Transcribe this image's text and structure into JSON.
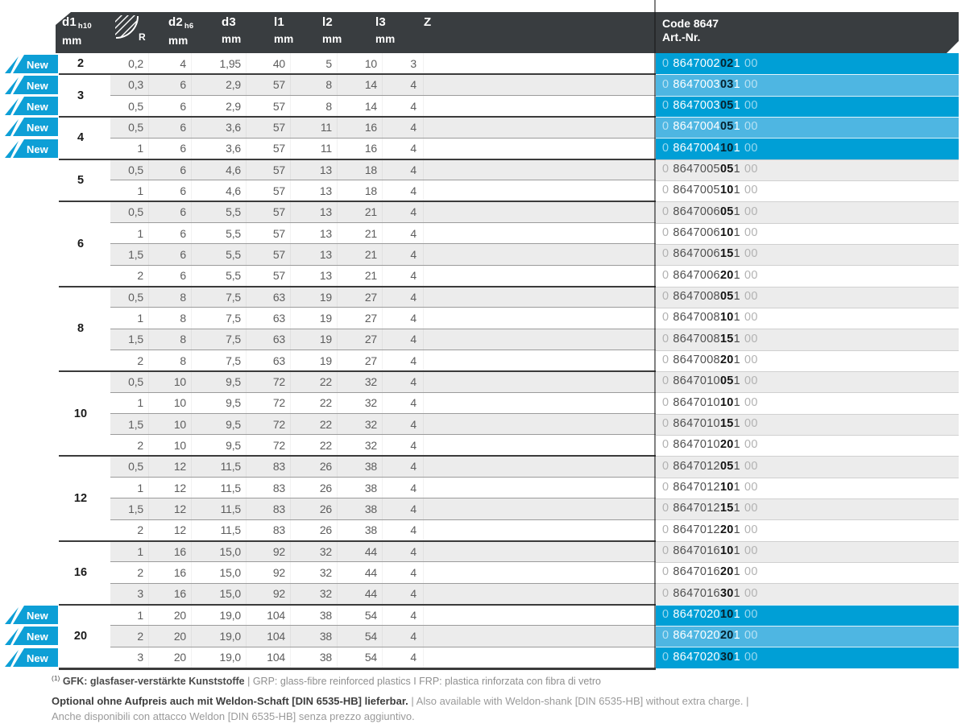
{
  "colors": {
    "accent_blue_dark": "#009fd6",
    "accent_blue_light": "#4eb6e2",
    "badge_blue": "#0d9fd6",
    "header_bg": "#393d40",
    "row_gray": "#ececec"
  },
  "badge_label": "New",
  "header": {
    "columns": [
      {
        "label": "d1",
        "sub": "h10",
        "unit": "mm"
      },
      {
        "label": "R",
        "icon": "radius-icon"
      },
      {
        "label": "d2",
        "sub": "h6",
        "unit": "mm"
      },
      {
        "label": "d3",
        "unit": "mm"
      },
      {
        "label": "l1",
        "unit": "mm"
      },
      {
        "label": "l2",
        "unit": "mm"
      },
      {
        "label": "l3",
        "unit": "mm"
      },
      {
        "label": "Z"
      }
    ],
    "code_title": "Code 8647",
    "code_subtitle": "Art.-Nr."
  },
  "groups": [
    {
      "d1": "2",
      "rows": [
        {
          "cells": [
            "0,2",
            "4",
            "1,95",
            "40",
            "5",
            "10",
            "3"
          ],
          "art": [
            "0",
            "8647002",
            "02",
            "1",
            "00"
          ],
          "new": true,
          "highlight": true
        }
      ]
    },
    {
      "d1": "3",
      "rows": [
        {
          "cells": [
            "0,3",
            "6",
            "2,9",
            "57",
            "8",
            "14",
            "4"
          ],
          "art": [
            "0",
            "8647003",
            "03",
            "1",
            "00"
          ],
          "new": true,
          "highlight": true
        },
        {
          "cells": [
            "0,5",
            "6",
            "2,9",
            "57",
            "8",
            "14",
            "4"
          ],
          "art": [
            "0",
            "8647003",
            "05",
            "1",
            "00"
          ],
          "new": true,
          "highlight": true
        }
      ]
    },
    {
      "d1": "4",
      "rows": [
        {
          "cells": [
            "0,5",
            "6",
            "3,6",
            "57",
            "11",
            "16",
            "4"
          ],
          "art": [
            "0",
            "8647004",
            "05",
            "1",
            "00"
          ],
          "new": true,
          "highlight": true
        },
        {
          "cells": [
            "1",
            "6",
            "3,6",
            "57",
            "11",
            "16",
            "4"
          ],
          "art": [
            "0",
            "8647004",
            "10",
            "1",
            "00"
          ],
          "new": true,
          "highlight": true
        }
      ]
    },
    {
      "d1": "5",
      "rows": [
        {
          "cells": [
            "0,5",
            "6",
            "4,6",
            "57",
            "13",
            "18",
            "4"
          ],
          "art": [
            "0",
            "8647005",
            "05",
            "1",
            "00"
          ]
        },
        {
          "cells": [
            "1",
            "6",
            "4,6",
            "57",
            "13",
            "18",
            "4"
          ],
          "art": [
            "0",
            "8647005",
            "10",
            "1",
            "00"
          ]
        }
      ]
    },
    {
      "d1": "6",
      "rows": [
        {
          "cells": [
            "0,5",
            "6",
            "5,5",
            "57",
            "13",
            "21",
            "4"
          ],
          "art": [
            "0",
            "8647006",
            "05",
            "1",
            "00"
          ]
        },
        {
          "cells": [
            "1",
            "6",
            "5,5",
            "57",
            "13",
            "21",
            "4"
          ],
          "art": [
            "0",
            "8647006",
            "10",
            "1",
            "00"
          ]
        },
        {
          "cells": [
            "1,5",
            "6",
            "5,5",
            "57",
            "13",
            "21",
            "4"
          ],
          "art": [
            "0",
            "8647006",
            "15",
            "1",
            "00"
          ]
        },
        {
          "cells": [
            "2",
            "6",
            "5,5",
            "57",
            "13",
            "21",
            "4"
          ],
          "art": [
            "0",
            "8647006",
            "20",
            "1",
            "00"
          ]
        }
      ]
    },
    {
      "d1": "8",
      "rows": [
        {
          "cells": [
            "0,5",
            "8",
            "7,5",
            "63",
            "19",
            "27",
            "4"
          ],
          "art": [
            "0",
            "8647008",
            "05",
            "1",
            "00"
          ]
        },
        {
          "cells": [
            "1",
            "8",
            "7,5",
            "63",
            "19",
            "27",
            "4"
          ],
          "art": [
            "0",
            "8647008",
            "10",
            "1",
            "00"
          ]
        },
        {
          "cells": [
            "1,5",
            "8",
            "7,5",
            "63",
            "19",
            "27",
            "4"
          ],
          "art": [
            "0",
            "8647008",
            "15",
            "1",
            "00"
          ]
        },
        {
          "cells": [
            "2",
            "8",
            "7,5",
            "63",
            "19",
            "27",
            "4"
          ],
          "art": [
            "0",
            "8647008",
            "20",
            "1",
            "00"
          ]
        }
      ]
    },
    {
      "d1": "10",
      "rows": [
        {
          "cells": [
            "0,5",
            "10",
            "9,5",
            "72",
            "22",
            "32",
            "4"
          ],
          "art": [
            "0",
            "8647010",
            "05",
            "1",
            "00"
          ]
        },
        {
          "cells": [
            "1",
            "10",
            "9,5",
            "72",
            "22",
            "32",
            "4"
          ],
          "art": [
            "0",
            "8647010",
            "10",
            "1",
            "00"
          ]
        },
        {
          "cells": [
            "1,5",
            "10",
            "9,5",
            "72",
            "22",
            "32",
            "4"
          ],
          "art": [
            "0",
            "8647010",
            "15",
            "1",
            "00"
          ]
        },
        {
          "cells": [
            "2",
            "10",
            "9,5",
            "72",
            "22",
            "32",
            "4"
          ],
          "art": [
            "0",
            "8647010",
            "20",
            "1",
            "00"
          ]
        }
      ]
    },
    {
      "d1": "12",
      "rows": [
        {
          "cells": [
            "0,5",
            "12",
            "11,5",
            "83",
            "26",
            "38",
            "4"
          ],
          "art": [
            "0",
            "8647012",
            "05",
            "1",
            "00"
          ]
        },
        {
          "cells": [
            "1",
            "12",
            "11,5",
            "83",
            "26",
            "38",
            "4"
          ],
          "art": [
            "0",
            "8647012",
            "10",
            "1",
            "00"
          ]
        },
        {
          "cells": [
            "1,5",
            "12",
            "11,5",
            "83",
            "26",
            "38",
            "4"
          ],
          "art": [
            "0",
            "8647012",
            "15",
            "1",
            "00"
          ]
        },
        {
          "cells": [
            "2",
            "12",
            "11,5",
            "83",
            "26",
            "38",
            "4"
          ],
          "art": [
            "0",
            "8647012",
            "20",
            "1",
            "00"
          ]
        }
      ]
    },
    {
      "d1": "16",
      "rows": [
        {
          "cells": [
            "1",
            "16",
            "15,0",
            "92",
            "32",
            "44",
            "4"
          ],
          "art": [
            "0",
            "8647016",
            "10",
            "1",
            "00"
          ]
        },
        {
          "cells": [
            "2",
            "16",
            "15,0",
            "92",
            "32",
            "44",
            "4"
          ],
          "art": [
            "0",
            "8647016",
            "20",
            "1",
            "00"
          ]
        },
        {
          "cells": [
            "3",
            "16",
            "15,0",
            "92",
            "32",
            "44",
            "4"
          ],
          "art": [
            "0",
            "8647016",
            "30",
            "1",
            "00"
          ]
        }
      ]
    },
    {
      "d1": "20",
      "rows": [
        {
          "cells": [
            "1",
            "20",
            "19,0",
            "104",
            "38",
            "54",
            "4"
          ],
          "art": [
            "0",
            "8647020",
            "10",
            "1",
            "00"
          ],
          "new": true,
          "highlight": true
        },
        {
          "cells": [
            "2",
            "20",
            "19,0",
            "104",
            "38",
            "54",
            "4"
          ],
          "art": [
            "0",
            "8647020",
            "20",
            "1",
            "00"
          ],
          "new": true,
          "highlight": true
        },
        {
          "cells": [
            "3",
            "20",
            "19,0",
            "104",
            "38",
            "54",
            "4"
          ],
          "art": [
            "0",
            "8647020",
            "30",
            "1",
            "00"
          ],
          "new": true,
          "highlight": true
        }
      ]
    }
  ],
  "footnotes": {
    "fn1_sup": "(1)",
    "fn1_bold": "GFK: glasfaser-verstärkte Kunststoffe",
    "fn1_rest": " | GRP: glass-fibre reinforced plastics I FRP: plastica rinforzata con fibra di vetro",
    "opt_bold": "Optional ohne Aufpreis auch mit Weldon-Schaft [DIN 6535-HB] lieferbar.",
    "opt_rest1": " | Also available with Weldon-shank [DIN 6535-HB] without extra charge. |",
    "opt_rest2": "Anche disponibili con attacco Weldon [DIN 6535-HB] senza prezzo aggiuntivo."
  }
}
